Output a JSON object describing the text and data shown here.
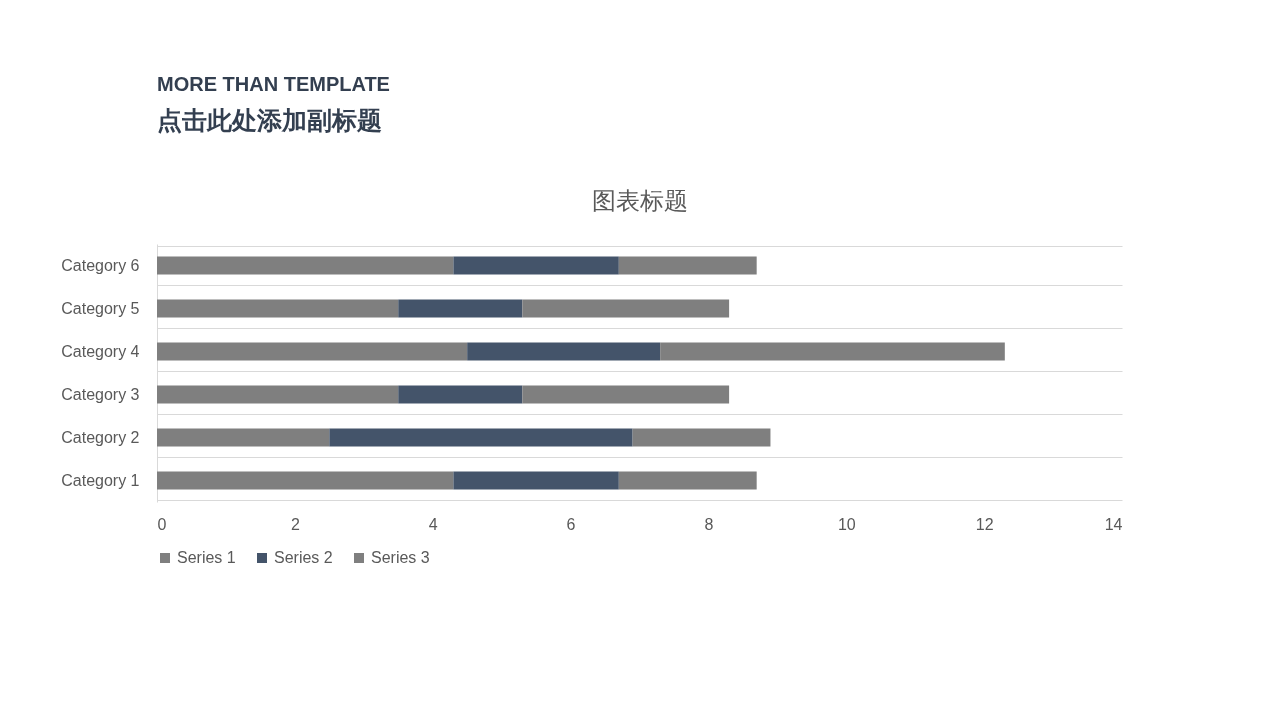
{
  "chart_data": {
    "type": "bar",
    "orientation": "horizontal",
    "stacked": true,
    "title": "图表标题",
    "annotations": [
      "MORE THAN TEMPLATE",
      "点击此处添加副标题"
    ],
    "categories": [
      "Category 6",
      "Category 5",
      "Category 4",
      "Category 3",
      "Category 2",
      "Category 1"
    ],
    "series": [
      {
        "name": "Series 1",
        "color": "#7f7f7f",
        "values": [
          4.3,
          3.5,
          4.5,
          3.5,
          2.5,
          4.3
        ]
      },
      {
        "name": "Series 2",
        "color": "#44546a",
        "values": [
          2.4,
          1.8,
          2.8,
          1.8,
          4.4,
          2.4
        ]
      },
      {
        "name": "Series 3",
        "color": "#7f7f7f",
        "values": [
          2,
          3,
          5,
          3,
          2,
          2
        ]
      }
    ],
    "xlim": [
      0,
      14
    ],
    "xticks": [
      0,
      2,
      4,
      6,
      8,
      10,
      12,
      14
    ],
    "grid": "y",
    "legend": "bottom"
  }
}
